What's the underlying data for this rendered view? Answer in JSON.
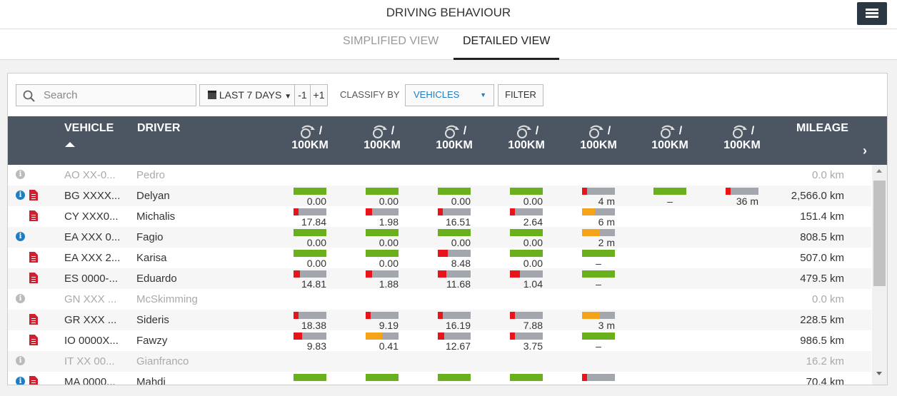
{
  "header": {
    "title": "DRIVING BEHAVIOUR",
    "menu_icon": "hamburger-icon"
  },
  "tabs": [
    {
      "label": "SIMPLIFIED VIEW",
      "active": false
    },
    {
      "label": "DETAILED VIEW",
      "active": true
    }
  ],
  "toolbar": {
    "search_placeholder": "Search",
    "period": "LAST 7 DAYS",
    "prev": "-1",
    "next": "+1",
    "classify_label": "CLASSIFY BY",
    "classify_value": "VEHICLES",
    "filter": "FILTER"
  },
  "colors": {
    "green": "#6aaf1c",
    "red": "#e8141a",
    "orange": "#f5a31a",
    "gray": "#a3a7ad",
    "header": "#4c5663",
    "info": "#1f7ec2",
    "doc": "#d0202f"
  },
  "table": {
    "vehicle_header": "VEHICLE",
    "driver_header": "DRIVER",
    "mileage_header": "MILEAGE",
    "sort": "ascending",
    "metric_columns": [
      {
        "icon": "harsh-acceleration-icon",
        "label": "/",
        "unit": "100KM"
      },
      {
        "icon": "harsh-acceleration-strong-icon",
        "label": "/",
        "unit": "100KM"
      },
      {
        "icon": "harsh-braking-icon",
        "label": "/",
        "unit": "100KM"
      },
      {
        "icon": "harsh-braking-strong-icon",
        "label": "/",
        "unit": "100KM"
      },
      {
        "icon": "idling-icon",
        "label": "/",
        "unit": "100KM"
      },
      {
        "icon": "harsh-cornering-icon",
        "label": "/",
        "unit": "100KM"
      },
      {
        "icon": "overspeed-icon",
        "label": "/",
        "unit": "100KM"
      }
    ],
    "rows": [
      {
        "vehicle": "AO XX-0...",
        "driver": "Pedro",
        "mileage": "0.0 km",
        "inactive": true,
        "info": true,
        "doc": false,
        "metrics": []
      },
      {
        "vehicle": "BG XXXX...",
        "driver": "Delyan",
        "mileage": "2,566.0 km",
        "info": true,
        "doc": true,
        "metrics": [
          {
            "value": "0.00",
            "fill": 1,
            "color": "green"
          },
          {
            "value": "0.00",
            "fill": 1,
            "color": "green"
          },
          {
            "value": "0.00",
            "fill": 1,
            "color": "green"
          },
          {
            "value": "0.00",
            "fill": 1,
            "color": "green"
          },
          {
            "value": "4 m",
            "fill": 0.15,
            "color": "red"
          },
          {
            "value": "–",
            "fill": 1,
            "color": "green"
          },
          {
            "value": "36 m",
            "fill": 0.1,
            "color": "red"
          }
        ]
      },
      {
        "vehicle": "CY XXX0...",
        "driver": "Michalis",
        "mileage": "151.4 km",
        "doc": true,
        "metrics": [
          {
            "value": "17.84",
            "fill": 0.08,
            "color": "red"
          },
          {
            "value": "1.98",
            "fill": 0.2,
            "color": "red"
          },
          {
            "value": "16.51",
            "fill": 0.15,
            "color": "red"
          },
          {
            "value": "2.64",
            "fill": 0.1,
            "color": "red"
          },
          {
            "value": "6 m",
            "fill": 0.4,
            "color": "orange"
          }
        ]
      },
      {
        "vehicle": "EA XXX 0...",
        "driver": "Fagio",
        "mileage": "808.5 km",
        "info": true,
        "metrics": [
          {
            "value": "0.00",
            "fill": 1,
            "color": "green"
          },
          {
            "value": "0.00",
            "fill": 1,
            "color": "green"
          },
          {
            "value": "0.00",
            "fill": 1,
            "color": "green"
          },
          {
            "value": "0.00",
            "fill": 1,
            "color": "green"
          },
          {
            "value": "2 m",
            "fill": 0.55,
            "color": "orange"
          }
        ]
      },
      {
        "vehicle": "EA XXX 2...",
        "driver": "Karisa",
        "mileage": "507.0 km",
        "doc": true,
        "metrics": [
          {
            "value": "0.00",
            "fill": 1,
            "color": "green"
          },
          {
            "value": "0.00",
            "fill": 1,
            "color": "green"
          },
          {
            "value": "8.48",
            "fill": 0.3,
            "color": "red"
          },
          {
            "value": "0.00",
            "fill": 1,
            "color": "green"
          },
          {
            "value": "–",
            "fill": 1,
            "color": "green"
          }
        ]
      },
      {
        "vehicle": "ES 0000-...",
        "driver": "Eduardo",
        "mileage": "479.5 km",
        "doc": true,
        "metrics": [
          {
            "value": "14.81",
            "fill": 0.2,
            "color": "red"
          },
          {
            "value": "1.88",
            "fill": 0.2,
            "color": "red"
          },
          {
            "value": "11.68",
            "fill": 0.25,
            "color": "red"
          },
          {
            "value": "1.04",
            "fill": 0.3,
            "color": "red"
          },
          {
            "value": "–",
            "fill": 1,
            "color": "green"
          }
        ]
      },
      {
        "vehicle": "GN XXX ...",
        "driver": "McSkimming",
        "mileage": "0.0 km",
        "inactive": true,
        "info": true,
        "metrics": []
      },
      {
        "vehicle": "GR XXX ...",
        "driver": "Sideris",
        "mileage": "228.5 km",
        "doc": true,
        "metrics": [
          {
            "value": "18.38",
            "fill": 0.08,
            "color": "red"
          },
          {
            "value": "9.19",
            "fill": 0.1,
            "color": "red"
          },
          {
            "value": "16.19",
            "fill": 0.1,
            "color": "red"
          },
          {
            "value": "7.88",
            "fill": 0.1,
            "color": "red"
          },
          {
            "value": "3 m",
            "fill": 0.55,
            "color": "orange"
          }
        ]
      },
      {
        "vehicle": "IO 0000X...",
        "driver": "Fawzy",
        "mileage": "986.5 km",
        "doc": true,
        "metrics": [
          {
            "value": "9.83",
            "fill": 0.25,
            "color": "red"
          },
          {
            "value": "0.41",
            "fill": 0.5,
            "color": "orange"
          },
          {
            "value": "12.67",
            "fill": 0.2,
            "color": "red"
          },
          {
            "value": "3.75",
            "fill": 0.1,
            "color": "red"
          },
          {
            "value": "–",
            "fill": 1,
            "color": "green"
          }
        ]
      },
      {
        "vehicle": "IT XX 00...",
        "driver": "Gianfranco",
        "mileage": "16.2 km",
        "inactive": true,
        "info": true,
        "metrics": []
      },
      {
        "vehicle": "MA 0000...",
        "driver": "Mahdi",
        "mileage": "70.4 km",
        "info": true,
        "doc": true,
        "metrics": [
          {
            "value": "",
            "fill": 1,
            "color": "green"
          },
          {
            "value": "",
            "fill": 1,
            "color": "green"
          },
          {
            "value": "",
            "fill": 1,
            "color": "green"
          },
          {
            "value": "",
            "fill": 1,
            "color": "green"
          },
          {
            "value": "",
            "fill": 0.1,
            "color": "red"
          }
        ]
      }
    ]
  }
}
